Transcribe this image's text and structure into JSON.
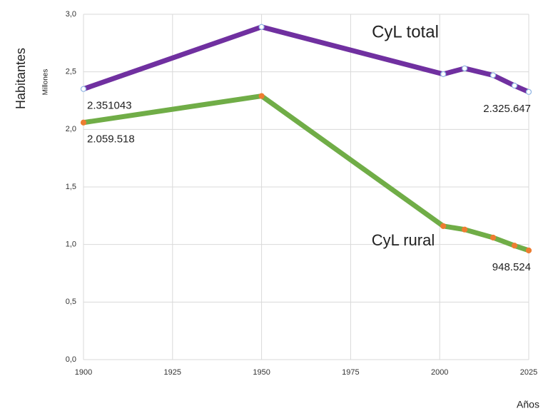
{
  "chart_data": {
    "type": "line",
    "y_axis_title": "Habitantes",
    "y_axis_units": "Millones",
    "x_axis_title": "Años",
    "x": [
      1900,
      1950,
      2001,
      2007,
      2015,
      2021,
      2025
    ],
    "series": [
      {
        "name": "CyL total",
        "color": "#7030a0",
        "marker_color": "#ffffff",
        "marker_edge": "#8eb4e3",
        "values": [
          2.351043,
          2.89,
          2.48,
          2.53,
          2.47,
          2.38,
          2.325647
        ],
        "value_labels": [
          "2.351043",
          null,
          null,
          null,
          null,
          null,
          "2.325.647"
        ]
      },
      {
        "name": "CyL rural",
        "color": "#70ad47",
        "marker_color": "#ed7d31",
        "marker_edge": "#ed7d31",
        "values": [
          2.059518,
          2.29,
          1.16,
          1.13,
          1.06,
          0.99,
          0.948524
        ],
        "value_labels": [
          "2.059.518",
          null,
          null,
          null,
          null,
          null,
          "948.524"
        ]
      }
    ],
    "xlim": [
      1900,
      2025
    ],
    "xticks": [
      1900,
      1925,
      1950,
      1975,
      2000,
      2025
    ],
    "ylim": [
      0,
      3
    ],
    "yticks": [
      {
        "value": 0,
        "label": "0,0"
      },
      {
        "value": 0.5,
        "label": "0,5"
      },
      {
        "value": 1,
        "label": "1,0"
      },
      {
        "value": 1.5,
        "label": "1,5"
      },
      {
        "value": 2,
        "label": "2,0"
      },
      {
        "value": 2.5,
        "label": "2,5"
      },
      {
        "value": 3,
        "label": "3,0"
      }
    ],
    "grid": true
  }
}
